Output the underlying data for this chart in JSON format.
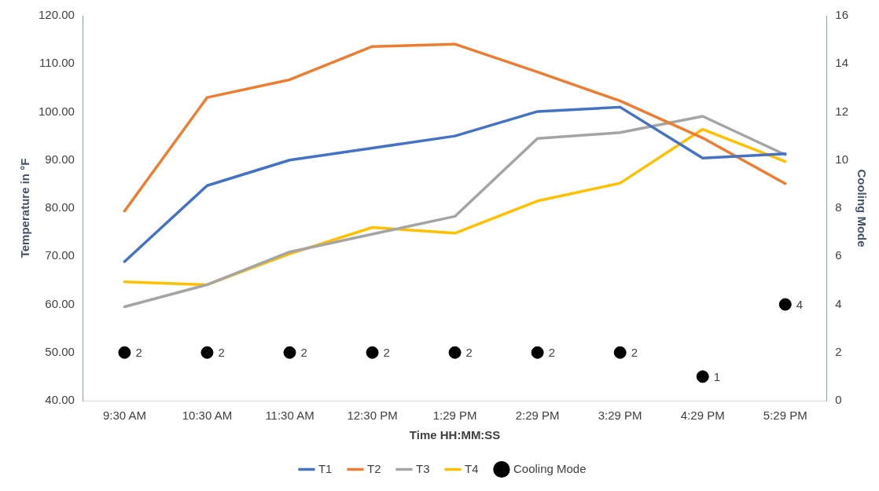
{
  "chart_data": {
    "type": "line",
    "xlabel": "Time HH:MM:SS",
    "ylabel": "Temperature in °F",
    "y2label": "Cooling Mode",
    "categories": [
      "9:30 AM",
      "10:30 AM",
      "11:30 AM",
      "12:30 PM",
      "1:29 PM",
      "2:29 PM",
      "3:29 PM",
      "4:29 PM",
      "5:29 PM"
    ],
    "series": [
      {
        "name": "T1",
        "color": "#4472c4",
        "values": [
          68.9,
          84.7,
          90.0,
          92.5,
          95.0,
          100.1,
          101.0,
          90.4,
          91.3
        ]
      },
      {
        "name": "T2",
        "color": "#ed7d31",
        "values": [
          79.4,
          103.0,
          106.7,
          113.6,
          114.1,
          108.3,
          102.3,
          94.6,
          85.1
        ]
      },
      {
        "name": "T3",
        "color": "#a5a5a5",
        "values": [
          59.5,
          64.1,
          70.9,
          74.6,
          78.3,
          94.5,
          95.7,
          99.1,
          91.1
        ]
      },
      {
        "name": "T4",
        "color": "#ffc000",
        "values": [
          64.7,
          64.1,
          70.5,
          76.0,
          74.8,
          81.5,
          85.2,
          96.4,
          89.7
        ]
      },
      {
        "name": "Cooling Mode",
        "type": "scatter",
        "axis": "y2",
        "marker": "circle",
        "color": "#000000",
        "values": [
          2,
          2,
          2,
          2,
          2,
          2,
          2,
          1,
          4
        ],
        "value_labels": [
          "2",
          "2",
          "2",
          "2",
          "2",
          "2",
          "2",
          "1",
          "4"
        ]
      }
    ],
    "ylim": [
      40,
      120
    ],
    "yticks": [
      {
        "value": 40,
        "label": "40.00"
      },
      {
        "value": 50,
        "label": "50.00"
      },
      {
        "value": 60,
        "label": "60.00"
      },
      {
        "value": 70,
        "label": "70.00"
      },
      {
        "value": 80,
        "label": "80.00"
      },
      {
        "value": 90,
        "label": "90.00"
      },
      {
        "value": 100,
        "label": "100.00"
      },
      {
        "value": 110,
        "label": "110.00"
      },
      {
        "value": 120,
        "label": "120.00"
      }
    ],
    "y2lim": [
      0,
      16
    ],
    "y2ticks": [
      0,
      2,
      4,
      6,
      8,
      10,
      12,
      14,
      16
    ],
    "grid": false,
    "legend": "bottom",
    "marker": "none",
    "line_style": "solid"
  }
}
